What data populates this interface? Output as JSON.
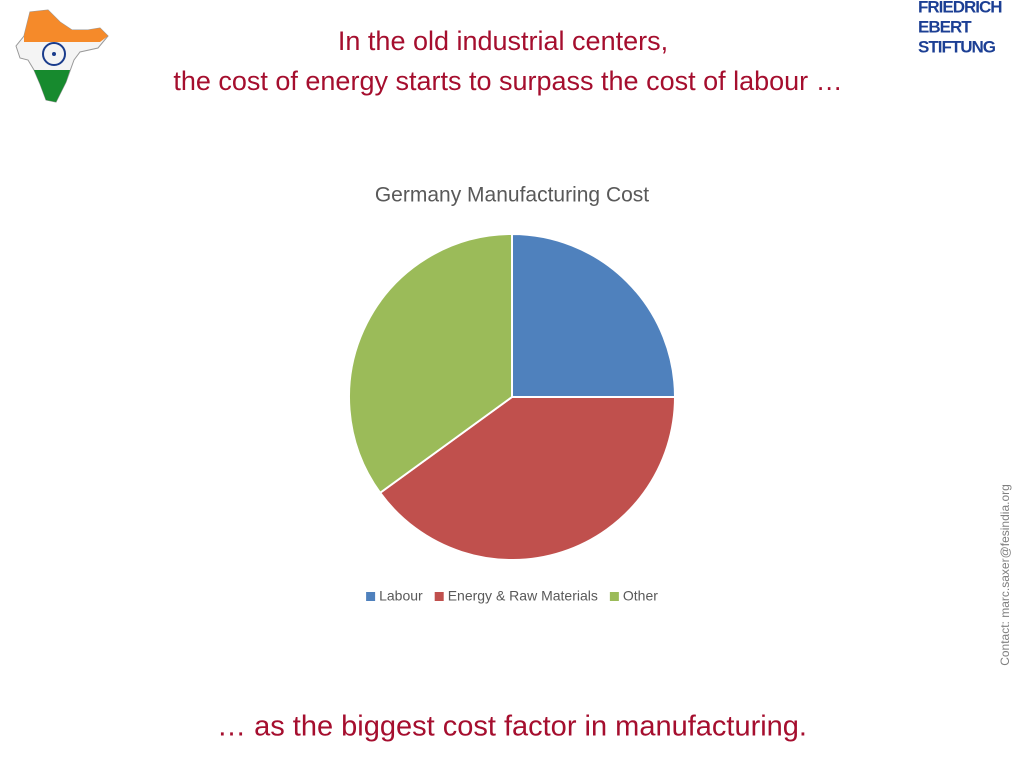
{
  "header": {
    "title_lines": [
      "In the old industrial centers,",
      "the cost of energy starts to surpass the cost of labour …"
    ]
  },
  "logo": {
    "lines": [
      "FRIEDRICH",
      "EBERT",
      "STIFTUNG"
    ]
  },
  "chart_data": {
    "type": "pie",
    "title": "Germany Manufacturing Cost",
    "categories": [
      "Labour",
      "Energy & Raw Materials",
      "Other"
    ],
    "values": [
      25,
      40,
      35
    ],
    "colors": [
      "#4f81bd",
      "#c0504d",
      "#9bbb59"
    ],
    "legend": "bottom"
  },
  "footer": {
    "text": "… as the biggest cost factor in manufacturing."
  },
  "contact": "Contact: marc.saxer@fesindia.org"
}
